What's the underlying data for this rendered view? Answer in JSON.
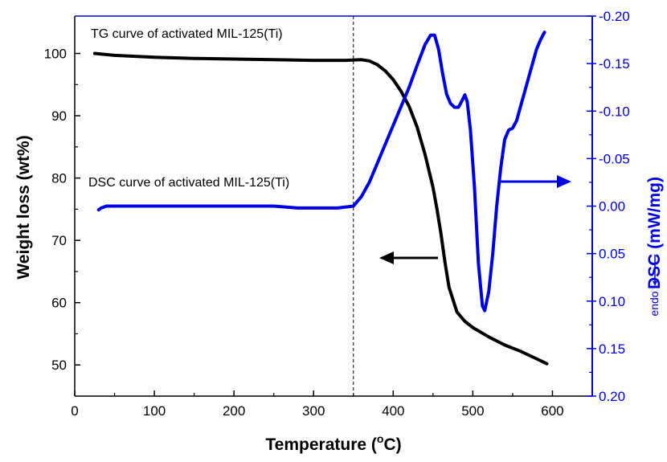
{
  "chart_data": {
    "type": "line",
    "title": "",
    "xlabel": "Temperature (",
    "xlabel_sup": "o",
    "xlabel_unit": "C)",
    "ylabel_left": "Weight loss (wt%)",
    "ylabel_right": "DSC (mW/mg)",
    "ylabel_right_endo": "endo",
    "xlim": [
      0,
      650
    ],
    "ylim_left": [
      45,
      106
    ],
    "ylim_right": [
      0.2,
      -0.2
    ],
    "x_ticks": [
      "0",
      "100",
      "200",
      "300",
      "400",
      "500",
      "600"
    ],
    "y_left_ticks": [
      "50",
      "60",
      "70",
      "80",
      "90",
      "100"
    ],
    "y_right_ticks": [
      "-0.20",
      "-0.15",
      "-0.10",
      "-0.05",
      "0.00",
      "0.05",
      "0.10",
      "0.15",
      "0.20"
    ],
    "vertical_line_x": 350,
    "annotations": {
      "tg_label": "TG curve of activated MIL-125(Ti)",
      "dsc_label": "DSC curve of activated MIL-125(Ti)"
    },
    "series": [
      {
        "axis": "left",
        "color": "#000000",
        "x": [
          25,
          50,
          100,
          150,
          200,
          250,
          300,
          340,
          360,
          370,
          380,
          390,
          400,
          410,
          420,
          430,
          440,
          450,
          455,
          460,
          465,
          470,
          480,
          490,
          500,
          520,
          540,
          560,
          580,
          593
        ],
        "y": [
          100.0,
          99.7,
          99.4,
          99.2,
          99.1,
          99.0,
          98.9,
          98.9,
          99.0,
          98.8,
          98.2,
          97.2,
          95.8,
          93.9,
          91.5,
          88.2,
          83.8,
          78.5,
          75.0,
          71.0,
          66.5,
          62.5,
          58.5,
          57.0,
          56.0,
          54.5,
          53.2,
          52.2,
          51.0,
          50.2
        ]
      },
      {
        "axis": "right",
        "color": "#0000e6",
        "x": [
          30,
          33,
          40,
          100,
          200,
          250,
          280,
          300,
          330,
          350,
          360,
          370,
          380,
          390,
          400,
          410,
          420,
          430,
          440,
          447,
          452,
          457,
          462,
          467,
          472,
          477,
          482,
          487,
          490,
          493,
          497,
          502,
          507,
          512,
          515,
          520,
          525,
          530,
          535,
          540,
          545,
          550,
          555,
          560,
          565,
          570,
          575,
          580,
          585,
          590
        ],
        "y": [
          0.004,
          0.002,
          0.0,
          0.0,
          0.0,
          0.0,
          0.002,
          0.002,
          0.002,
          0.0,
          -0.01,
          -0.025,
          -0.045,
          -0.065,
          -0.085,
          -0.105,
          -0.125,
          -0.148,
          -0.17,
          -0.18,
          -0.18,
          -0.165,
          -0.14,
          -0.118,
          -0.108,
          -0.104,
          -0.104,
          -0.112,
          -0.117,
          -0.11,
          -0.08,
          -0.02,
          0.06,
          0.105,
          0.11,
          0.09,
          0.05,
          0.0,
          -0.04,
          -0.07,
          -0.08,
          -0.082,
          -0.09,
          -0.105,
          -0.12,
          -0.135,
          -0.15,
          -0.165,
          -0.175,
          -0.183
        ]
      }
    ]
  }
}
